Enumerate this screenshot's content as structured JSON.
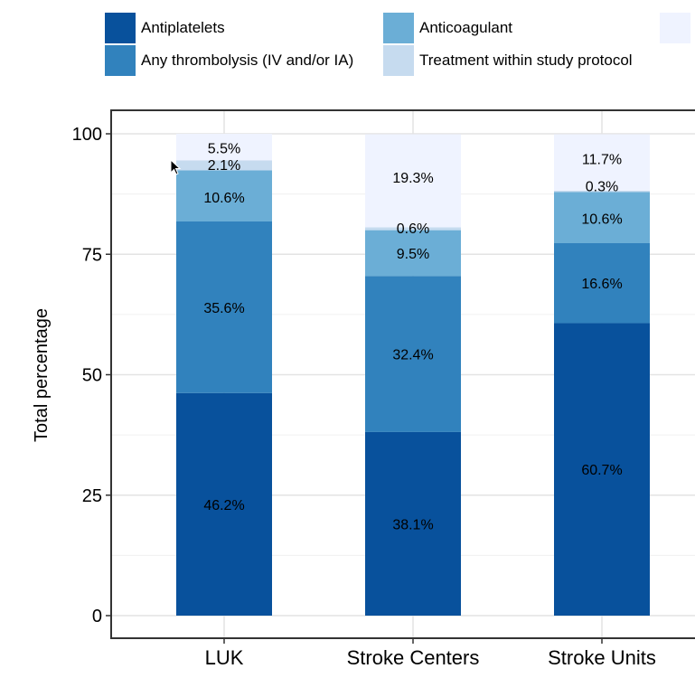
{
  "chart_data": {
    "type": "bar",
    "stacked": true,
    "categories": [
      "LUK",
      "Stroke Centers",
      "Stroke Units"
    ],
    "series": [
      {
        "name": "Antiplatelets",
        "color": "#08519c",
        "values": [
          46.2,
          38.1,
          60.7
        ],
        "labels": [
          "46.2%",
          "38.1%",
          "60.7%"
        ]
      },
      {
        "name": "Any thrombolysis (IV and/or IA)",
        "color": "#3182bd",
        "values": [
          35.6,
          32.4,
          16.6
        ],
        "labels": [
          "35.6%",
          "32.4%",
          "16.6%"
        ]
      },
      {
        "name": "Anticoagulant",
        "color": "#6baed6",
        "values": [
          10.6,
          9.5,
          10.6
        ],
        "labels": [
          "10.6%",
          "9.5%",
          "10.6%"
        ]
      },
      {
        "name": "Treatment within study protocol",
        "color": "#c6dbef",
        "values": [
          2.1,
          0.6,
          0.3
        ],
        "labels": [
          "2.1%",
          "0.6%",
          "0.3%"
        ]
      },
      {
        "name": "",
        "color": "#eff3ff",
        "values": [
          5.5,
          19.3,
          11.7
        ],
        "labels": [
          "5.5%",
          "19.3%",
          "11.7%"
        ]
      }
    ],
    "legend": {
      "items": [
        {
          "label": "Antiplatelets",
          "color": "#08519c"
        },
        {
          "label": "Anticoagulant",
          "color": "#6baed6"
        },
        {
          "label": "",
          "color": "#eff3ff"
        },
        {
          "label": "Any thrombolysis (IV and/or IA)",
          "color": "#3182bd"
        },
        {
          "label": "Treatment within study protocol",
          "color": "#c6dbef"
        }
      ],
      "placement": "top"
    },
    "ylabel": "Total percentage",
    "xlabel": "",
    "ylim": [
      0,
      100
    ],
    "yticks": [
      0,
      25,
      50,
      75,
      100
    ],
    "ytick_labels": [
      "0",
      "25",
      "50",
      "75",
      "100"
    ],
    "grid": true
  }
}
